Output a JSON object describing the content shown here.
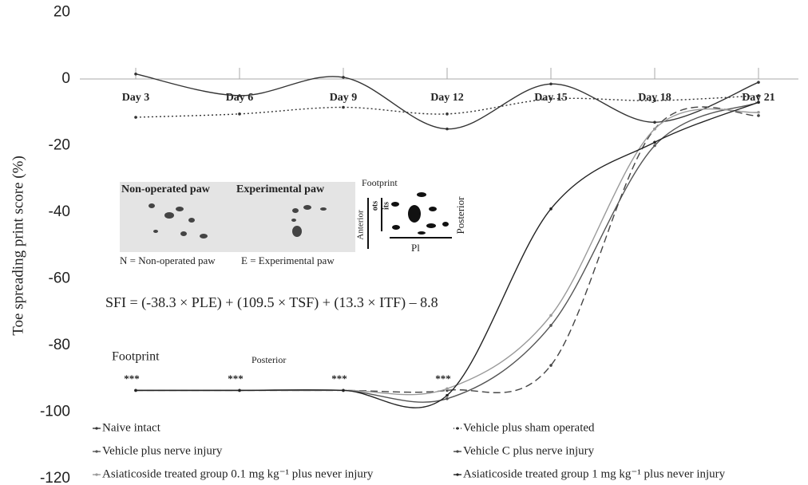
{
  "chart_data": {
    "type": "line",
    "y_label": "Toe spreading print score (%)",
    "categories": [
      "Day 3",
      "Day 6",
      "Day 9",
      "Day 12",
      "Day 15",
      "Day 18",
      "Day 21"
    ],
    "ylim": [
      -120,
      20
    ],
    "yticks": [
      -120,
      -100,
      -80,
      -60,
      -40,
      -20,
      0,
      20
    ],
    "grid": false,
    "series": [
      {
        "name": "Naive intact",
        "color": "#333333",
        "dash": "solid",
        "values": [
          1.5,
          -5,
          0.5,
          -15,
          -1.5,
          -13,
          -1
        ]
      },
      {
        "name": "Vehicle plus sham operated",
        "color": "#333333",
        "dash": "dotted",
        "values": [
          -11.5,
          -10.5,
          -8.5,
          -10.5,
          -6,
          -6.5,
          -5
        ]
      },
      {
        "name": "Vehicle plus nerve injury",
        "color": "#555555",
        "dash": "solid",
        "values": [
          -93.5,
          -93.5,
          -93.5,
          -96,
          -74,
          -20,
          -7
        ]
      },
      {
        "name": "Vehicle C plus nerve injury",
        "color": "#444444",
        "dash": "dashed",
        "values": [
          -93.5,
          -93.5,
          -93.5,
          -93.5,
          -86,
          -15,
          -11
        ]
      },
      {
        "name": "Asiaticoside treated group 0.1 mg kg⁻¹ plus never injury",
        "color": "#999999",
        "dash": "solid",
        "values": [
          -93.5,
          -93.5,
          -93.5,
          -93,
          -71,
          -15,
          -10
        ]
      },
      {
        "name": "Asiaticoside treated group 1 mg kg⁻¹ plus never injury",
        "color": "#222222",
        "dash": "solid",
        "values": [
          -93.5,
          -93.5,
          -93.5,
          -95,
          -39,
          -19,
          -7
        ]
      }
    ],
    "significance": [
      "***",
      "***",
      "***",
      "***"
    ],
    "formula": "SFI = (-38.3 × PLE) + (109.5 × TSF) + (13.3 × ITF) – 8.8",
    "footprint_label": "Footprint",
    "posterior_label": "Posterior",
    "inset": {
      "left_title": "Non-operated paw",
      "right_title": "Experimental  paw",
      "left_caption": "N = Non-operated paw",
      "right_caption": "E = Experimental paw",
      "diagram_title": "Footprint",
      "anterior": "Anterior",
      "posterior": "Posterior",
      "ots": "ots",
      "its": "its",
      "pl": "Pl"
    }
  }
}
